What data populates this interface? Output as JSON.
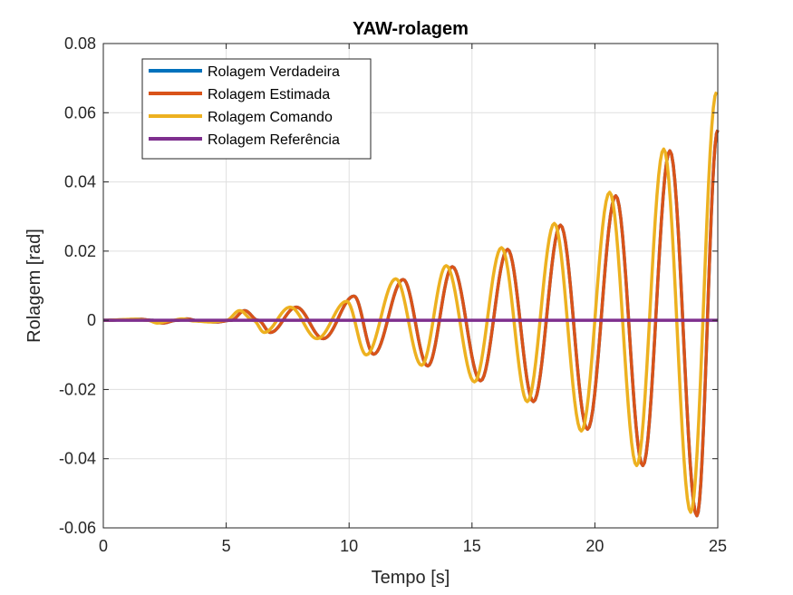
{
  "chart_data": {
    "type": "line",
    "title": "YAW-rolagem",
    "xlabel": "Tempo [s]",
    "ylabel": "Rolagem [rad]",
    "xlim": [
      0,
      25
    ],
    "ylim": [
      -0.06,
      0.08
    ],
    "xticks": [
      0,
      5,
      10,
      15,
      20,
      25
    ],
    "xtick_labels": [
      "0",
      "5",
      "10",
      "15",
      "20",
      "25"
    ],
    "yticks": [
      -0.06,
      -0.04,
      -0.02,
      0,
      0.02,
      0.04,
      0.06,
      0.08
    ],
    "ytick_labels": [
      "-0.06",
      "-0.04",
      "-0.02",
      "0",
      "0.02",
      "0.04",
      "0.06",
      "0.08"
    ],
    "grid": true,
    "legend_position": "top-left",
    "series": [
      {
        "name": "Rolagem Verdadeira",
        "color": "#0072BD",
        "x": [
          0,
          1.5,
          2.0,
          2.4,
          3.0,
          3.4,
          3.9,
          4.6,
          5.2,
          5.75,
          6.3,
          6.8,
          7.85,
          8.95,
          10.2,
          11.0,
          12.2,
          13.2,
          14.2,
          15.35,
          16.45,
          17.5,
          18.6,
          19.7,
          20.85,
          21.95,
          23.05,
          24.15,
          25.0
        ],
        "y": [
          0,
          0.0003,
          0,
          -0.0008,
          0,
          0.0004,
          -0.0002,
          -0.0005,
          0,
          0.0028,
          0,
          -0.0035,
          0.0038,
          -0.0053,
          0.007,
          -0.0098,
          0.0118,
          -0.0132,
          0.0155,
          -0.0175,
          0.0205,
          -0.0235,
          0.0275,
          -0.0315,
          0.036,
          -0.042,
          0.049,
          -0.0565,
          0.055
        ]
      },
      {
        "name": "Rolagem Estimada",
        "color": "#D95319",
        "x": [
          0,
          1.5,
          2.0,
          2.4,
          3.0,
          3.4,
          3.9,
          4.6,
          5.2,
          5.75,
          6.3,
          6.8,
          7.85,
          8.95,
          10.2,
          11.0,
          12.2,
          13.2,
          14.2,
          15.35,
          16.45,
          17.5,
          18.6,
          19.7,
          20.85,
          21.95,
          23.05,
          24.15,
          25.0
        ],
        "y": [
          0,
          0.0003,
          0,
          -0.0008,
          0,
          0.0004,
          -0.0002,
          -0.0005,
          0,
          0.0028,
          0,
          -0.0035,
          0.0038,
          -0.0053,
          0.007,
          -0.0098,
          0.0118,
          -0.0132,
          0.0155,
          -0.0175,
          0.0205,
          -0.0235,
          0.0275,
          -0.0315,
          0.036,
          -0.042,
          0.049,
          -0.0565,
          0.055
        ]
      },
      {
        "name": "Rolagem Comando",
        "color": "#EDB120",
        "x": [
          0,
          1.3,
          1.8,
          2.2,
          2.8,
          3.2,
          3.7,
          4.4,
          5.0,
          5.55,
          6.1,
          6.55,
          7.6,
          8.7,
          9.9,
          10.7,
          11.9,
          12.95,
          13.95,
          15.1,
          16.2,
          17.25,
          18.35,
          19.45,
          20.6,
          21.7,
          22.8,
          23.9,
          24.95
        ],
        "y": [
          0,
          0.0003,
          0,
          -0.0008,
          0,
          0.0004,
          -0.0002,
          -0.0005,
          0,
          0.0028,
          0,
          -0.0035,
          0.0038,
          -0.0053,
          0.0055,
          -0.01,
          0.012,
          -0.013,
          0.0158,
          -0.0178,
          0.021,
          -0.0235,
          0.028,
          -0.032,
          0.037,
          -0.042,
          0.0495,
          -0.0555,
          0.066
        ]
      },
      {
        "name": "Rolagem Referência",
        "color": "#7E2F8E",
        "x": [
          0,
          25
        ],
        "y": [
          0,
          0
        ]
      }
    ]
  }
}
